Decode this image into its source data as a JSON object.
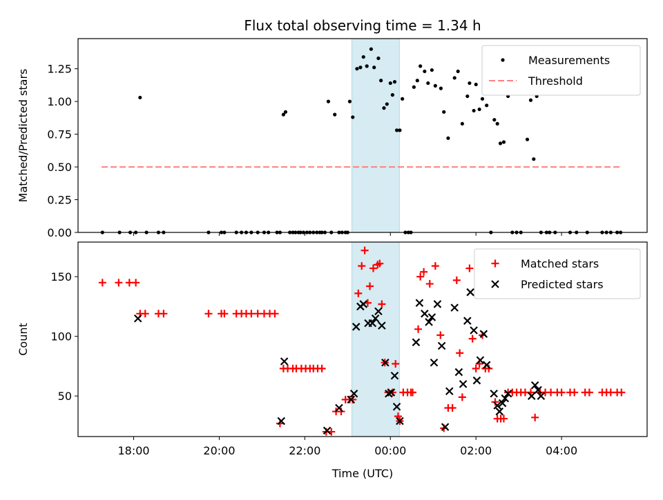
{
  "chart_data": [
    {
      "type": "scatter",
      "title": "Flux total observing time = 1.34 h",
      "xlabel": "",
      "ylabel": "Matched/Predicted stars",
      "xlim": [
        16.7,
        30.0
      ],
      "ylim": [
        0.0,
        1.48
      ],
      "yticks": [
        0.0,
        0.25,
        0.5,
        0.75,
        1.0,
        1.25
      ],
      "yticklabels": [
        "0.00",
        "0.25",
        "0.50",
        "0.75",
        "1.00",
        "1.25"
      ],
      "xticks": [
        18,
        20,
        22,
        24,
        26,
        28
      ],
      "show_xticklabels": false,
      "highlight_span": {
        "x0": 23.1,
        "x1": 24.21,
        "color": "#add8e6"
      },
      "legend": "upper right",
      "series": [
        {
          "name": "Measurements",
          "marker": "dot",
          "color": "#000000",
          "points": [
            [
              17.27,
              0
            ],
            [
              17.67,
              0
            ],
            [
              17.92,
              0
            ],
            [
              18.05,
              0
            ],
            [
              18.15,
              1.03
            ],
            [
              18.3,
              0
            ],
            [
              18.58,
              0
            ],
            [
              18.7,
              0
            ],
            [
              19.75,
              0
            ],
            [
              20.05,
              0
            ],
            [
              20.12,
              0
            ],
            [
              20.4,
              0
            ],
            [
              20.52,
              0
            ],
            [
              20.63,
              0
            ],
            [
              20.75,
              0
            ],
            [
              20.9,
              0
            ],
            [
              21.05,
              0
            ],
            [
              21.15,
              0
            ],
            [
              21.35,
              0
            ],
            [
              21.42,
              0
            ],
            [
              21.5,
              0.9
            ],
            [
              21.55,
              0.92
            ],
            [
              21.65,
              0
            ],
            [
              21.72,
              0
            ],
            [
              21.78,
              0
            ],
            [
              21.85,
              0
            ],
            [
              21.9,
              0
            ],
            [
              21.97,
              0
            ],
            [
              22.05,
              0
            ],
            [
              22.12,
              0
            ],
            [
              22.2,
              0
            ],
            [
              22.28,
              0
            ],
            [
              22.35,
              0
            ],
            [
              22.4,
              0
            ],
            [
              22.47,
              0
            ],
            [
              22.55,
              1.0
            ],
            [
              22.62,
              0
            ],
            [
              22.7,
              0.9
            ],
            [
              22.8,
              0
            ],
            [
              22.87,
              0
            ],
            [
              22.95,
              0
            ],
            [
              23.0,
              0
            ],
            [
              23.05,
              1.0
            ],
            [
              23.12,
              0.88
            ],
            [
              23.22,
              1.25
            ],
            [
              23.3,
              1.26
            ],
            [
              23.37,
              1.34
            ],
            [
              23.45,
              1.27
            ],
            [
              23.55,
              1.4
            ],
            [
              23.62,
              1.26
            ],
            [
              23.72,
              1.33
            ],
            [
              23.78,
              1.16
            ],
            [
              23.85,
              0.95
            ],
            [
              23.92,
              0.98
            ],
            [
              24.0,
              1.14
            ],
            [
              24.05,
              1.05
            ],
            [
              24.1,
              1.15
            ],
            [
              24.15,
              0.78
            ],
            [
              24.22,
              0.78
            ],
            [
              24.28,
              1.02
            ],
            [
              24.35,
              0
            ],
            [
              24.42,
              0
            ],
            [
              24.48,
              0
            ],
            [
              24.55,
              1.11
            ],
            [
              24.63,
              1.16
            ],
            [
              24.7,
              1.27
            ],
            [
              24.8,
              1.23
            ],
            [
              24.88,
              1.14
            ],
            [
              24.97,
              1.24
            ],
            [
              25.05,
              1.12
            ],
            [
              25.18,
              1.1
            ],
            [
              25.25,
              0.92
            ],
            [
              25.35,
              0.72
            ],
            [
              25.5,
              1.18
            ],
            [
              25.58,
              1.23
            ],
            [
              25.68,
              0.83
            ],
            [
              25.8,
              1.04
            ],
            [
              25.85,
              1.14
            ],
            [
              25.95,
              0.93
            ],
            [
              26.0,
              1.13
            ],
            [
              26.08,
              0.94
            ],
            [
              26.15,
              1.02
            ],
            [
              26.25,
              0.97
            ],
            [
              26.35,
              0
            ],
            [
              26.43,
              0.86
            ],
            [
              26.5,
              0.83
            ],
            [
              26.57,
              0.68
            ],
            [
              26.65,
              0.69
            ],
            [
              26.75,
              1.04
            ],
            [
              26.85,
              0
            ],
            [
              26.95,
              0
            ],
            [
              27.05,
              0
            ],
            [
              27.2,
              0.71
            ],
            [
              27.28,
              1.01
            ],
            [
              27.35,
              0.56
            ],
            [
              27.42,
              1.04
            ],
            [
              27.52,
              0
            ],
            [
              27.65,
              0
            ],
            [
              27.72,
              0
            ],
            [
              27.85,
              0
            ],
            [
              28.2,
              0
            ],
            [
              28.35,
              0
            ],
            [
              28.6,
              0
            ],
            [
              28.95,
              0
            ],
            [
              29.05,
              0
            ],
            [
              29.15,
              0
            ],
            [
              29.3,
              0
            ],
            [
              29.38,
              0
            ]
          ]
        },
        {
          "name": "Threshold",
          "marker": "dashed-line",
          "color": "#ff7f7f",
          "points": [
            [
              17.25,
              0.5
            ],
            [
              29.4,
              0.5
            ]
          ]
        }
      ]
    },
    {
      "type": "scatter",
      "title": "",
      "xlabel": "Time (UTC)",
      "ylabel": "Count",
      "xlim": [
        16.7,
        30.0
      ],
      "ylim": [
        16,
        179
      ],
      "yticks": [
        50,
        100,
        150
      ],
      "yticklabels": [
        "50",
        "100",
        "150"
      ],
      "xticks": [
        18,
        20,
        22,
        24,
        26,
        28
      ],
      "xticklabels": [
        "18:00",
        "20:00",
        "22:00",
        "00:00",
        "02:00",
        "04:00"
      ],
      "highlight_span": {
        "x0": 23.1,
        "x1": 24.21,
        "color": "#add8e6"
      },
      "legend": "upper right",
      "series": [
        {
          "name": "Matched stars",
          "marker": "plus",
          "color": "#ff0000",
          "points": [
            [
              17.27,
              145
            ],
            [
              17.65,
              145
            ],
            [
              17.9,
              145
            ],
            [
              18.05,
              145
            ],
            [
              18.15,
              119
            ],
            [
              18.27,
              119
            ],
            [
              18.58,
              119
            ],
            [
              18.7,
              119
            ],
            [
              19.75,
              119
            ],
            [
              20.05,
              119
            ],
            [
              20.12,
              119
            ],
            [
              20.4,
              119
            ],
            [
              20.52,
              119
            ],
            [
              20.63,
              119
            ],
            [
              20.75,
              119
            ],
            [
              20.9,
              119
            ],
            [
              21.05,
              119
            ],
            [
              21.18,
              119
            ],
            [
              21.3,
              119
            ],
            [
              21.42,
              27
            ],
            [
              21.5,
              73
            ],
            [
              21.6,
              73
            ],
            [
              21.72,
              73
            ],
            [
              21.8,
              73
            ],
            [
              21.92,
              73
            ],
            [
              22.02,
              73
            ],
            [
              22.12,
              73
            ],
            [
              22.2,
              73
            ],
            [
              22.3,
              73
            ],
            [
              22.4,
              73
            ],
            [
              22.5,
              20
            ],
            [
              22.62,
              20
            ],
            [
              22.73,
              37
            ],
            [
              22.85,
              37
            ],
            [
              22.95,
              47
            ],
            [
              23.05,
              47
            ],
            [
              23.12,
              47
            ],
            [
              23.25,
              136
            ],
            [
              23.33,
              159
            ],
            [
              23.4,
              172
            ],
            [
              23.47,
              128
            ],
            [
              23.52,
              142
            ],
            [
              23.6,
              157
            ],
            [
              23.7,
              160
            ],
            [
              23.75,
              161
            ],
            [
              23.8,
              127
            ],
            [
              23.87,
              78
            ],
            [
              23.95,
              53
            ],
            [
              24.05,
              53
            ],
            [
              24.12,
              77
            ],
            [
              24.18,
              33
            ],
            [
              24.22,
              29
            ],
            [
              24.3,
              53
            ],
            [
              24.4,
              53
            ],
            [
              24.48,
              53
            ],
            [
              24.52,
              53
            ],
            [
              24.65,
              106
            ],
            [
              24.7,
              150
            ],
            [
              24.78,
              154
            ],
            [
              24.92,
              144
            ],
            [
              25.05,
              159
            ],
            [
              25.17,
              101
            ],
            [
              25.25,
              23
            ],
            [
              25.35,
              40
            ],
            [
              25.45,
              40
            ],
            [
              25.55,
              147
            ],
            [
              25.62,
              86
            ],
            [
              25.68,
              49
            ],
            [
              25.85,
              157
            ],
            [
              25.92,
              98
            ],
            [
              26.0,
              73
            ],
            [
              26.08,
              77
            ],
            [
              26.15,
              101
            ],
            [
              26.22,
              73
            ],
            [
              26.3,
              73
            ],
            [
              26.45,
              45
            ],
            [
              26.5,
              31
            ],
            [
              26.58,
              31
            ],
            [
              26.65,
              31
            ],
            [
              26.75,
              53
            ],
            [
              26.85,
              53
            ],
            [
              26.95,
              53
            ],
            [
              27.05,
              53
            ],
            [
              27.15,
              53
            ],
            [
              27.28,
              53
            ],
            [
              27.38,
              32
            ],
            [
              27.5,
              53
            ],
            [
              27.62,
              53
            ],
            [
              27.75,
              53
            ],
            [
              27.9,
              53
            ],
            [
              28.0,
              53
            ],
            [
              28.2,
              53
            ],
            [
              28.3,
              53
            ],
            [
              28.55,
              53
            ],
            [
              28.65,
              53
            ],
            [
              28.95,
              53
            ],
            [
              29.05,
              53
            ],
            [
              29.15,
              53
            ],
            [
              29.3,
              53
            ],
            [
              29.4,
              53
            ]
          ]
        },
        {
          "name": "Predicted stars",
          "marker": "x",
          "color": "#000000",
          "points": [
            [
              18.1,
              115
            ],
            [
              21.45,
              29
            ],
            [
              21.52,
              79
            ],
            [
              22.52,
              21
            ],
            [
              22.8,
              40
            ],
            [
              23.08,
              47
            ],
            [
              23.15,
              52
            ],
            [
              23.2,
              108
            ],
            [
              23.3,
              125
            ],
            [
              23.37,
              127
            ],
            [
              23.48,
              111
            ],
            [
              23.58,
              111
            ],
            [
              23.65,
              115
            ],
            [
              23.72,
              121
            ],
            [
              23.8,
              109
            ],
            [
              23.88,
              78
            ],
            [
              23.96,
              52
            ],
            [
              24.02,
              53
            ],
            [
              24.1,
              67
            ],
            [
              24.15,
              41
            ],
            [
              24.22,
              29
            ],
            [
              24.6,
              95
            ],
            [
              24.68,
              128
            ],
            [
              24.8,
              119
            ],
            [
              24.9,
              112
            ],
            [
              24.97,
              116
            ],
            [
              25.02,
              78
            ],
            [
              25.1,
              127
            ],
            [
              25.2,
              92
            ],
            [
              25.28,
              24
            ],
            [
              25.38,
              54
            ],
            [
              25.5,
              124
            ],
            [
              25.6,
              70
            ],
            [
              25.7,
              60
            ],
            [
              25.8,
              113
            ],
            [
              25.87,
              137
            ],
            [
              25.95,
              105
            ],
            [
              26.02,
              63
            ],
            [
              26.1,
              80
            ],
            [
              26.18,
              102
            ],
            [
              26.25,
              76
            ],
            [
              26.42,
              52
            ],
            [
              26.5,
              42
            ],
            [
              26.55,
              37
            ],
            [
              26.62,
              44
            ],
            [
              26.68,
              48
            ],
            [
              26.75,
              52
            ],
            [
              27.3,
              50
            ],
            [
              27.38,
              59
            ],
            [
              27.45,
              55
            ],
            [
              27.52,
              50
            ]
          ]
        }
      ]
    }
  ]
}
